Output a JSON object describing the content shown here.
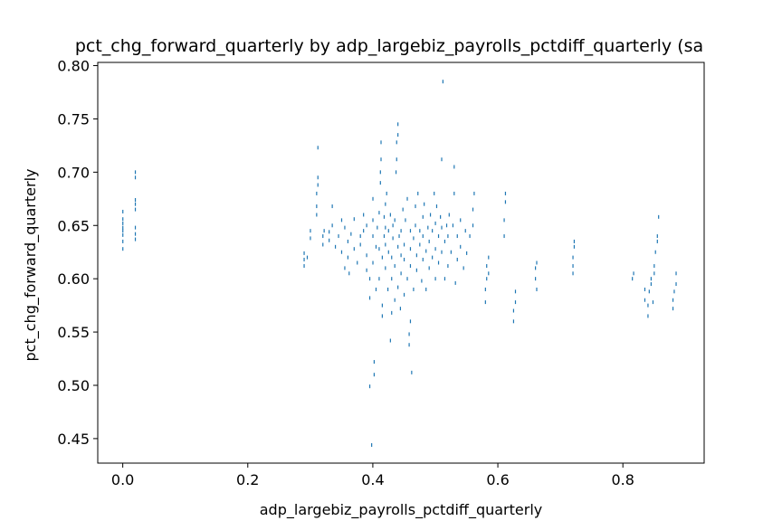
{
  "chart_data": {
    "type": "scatter",
    "title": "pct_chg_forward_quarterly by adp_largebiz_payrolls_pctdiff_quarterly (sa",
    "xlabel": "adp_largebiz_payrolls_pctdiff_quarterly",
    "ylabel": "pct_chg_forward_quarterly",
    "xlim": [
      -0.04,
      0.93
    ],
    "ylim": [
      0.427,
      0.803
    ],
    "xticks": [
      0.0,
      0.2,
      0.4,
      0.6,
      0.8
    ],
    "xtick_labels": [
      "0.0",
      "0.2",
      "0.4",
      "0.6",
      "0.8"
    ],
    "yticks": [
      0.45,
      0.5,
      0.55,
      0.6,
      0.65,
      0.7,
      0.75,
      0.8
    ],
    "ytick_labels": [
      "0.45",
      "0.50",
      "0.55",
      "0.60",
      "0.65",
      "0.70",
      "0.75",
      "0.80"
    ],
    "grid": false,
    "marker_color": "#1f77b4",
    "points": [
      [
        0.0,
        0.628
      ],
      [
        0.0,
        0.635
      ],
      [
        0.0,
        0.641
      ],
      [
        0.0,
        0.645
      ],
      [
        0.0,
        0.648
      ],
      [
        0.0,
        0.652
      ],
      [
        0.0,
        0.656
      ],
      [
        0.0,
        0.663
      ],
      [
        0.02,
        0.637
      ],
      [
        0.02,
        0.642
      ],
      [
        0.02,
        0.648
      ],
      [
        0.02,
        0.665
      ],
      [
        0.02,
        0.67
      ],
      [
        0.02,
        0.674
      ],
      [
        0.02,
        0.695
      ],
      [
        0.02,
        0.7
      ],
      [
        0.29,
        0.612
      ],
      [
        0.29,
        0.618
      ],
      [
        0.29,
        0.624
      ],
      [
        0.295,
        0.62
      ],
      [
        0.3,
        0.638
      ],
      [
        0.3,
        0.645
      ],
      [
        0.31,
        0.66
      ],
      [
        0.31,
        0.668
      ],
      [
        0.31,
        0.68
      ],
      [
        0.312,
        0.688
      ],
      [
        0.312,
        0.695
      ],
      [
        0.312,
        0.723
      ],
      [
        0.32,
        0.632
      ],
      [
        0.32,
        0.64
      ],
      [
        0.322,
        0.645
      ],
      [
        0.33,
        0.636
      ],
      [
        0.33,
        0.644
      ],
      [
        0.335,
        0.65
      ],
      [
        0.335,
        0.668
      ],
      [
        0.34,
        0.63
      ],
      [
        0.345,
        0.64
      ],
      [
        0.35,
        0.625
      ],
      [
        0.35,
        0.655
      ],
      [
        0.355,
        0.61
      ],
      [
        0.355,
        0.648
      ],
      [
        0.36,
        0.62
      ],
      [
        0.36,
        0.635
      ],
      [
        0.362,
        0.605
      ],
      [
        0.365,
        0.642
      ],
      [
        0.37,
        0.628
      ],
      [
        0.37,
        0.656
      ],
      [
        0.375,
        0.615
      ],
      [
        0.38,
        0.64
      ],
      [
        0.38,
        0.632
      ],
      [
        0.385,
        0.645
      ],
      [
        0.385,
        0.66
      ],
      [
        0.39,
        0.608
      ],
      [
        0.39,
        0.622
      ],
      [
        0.39,
        0.65
      ],
      [
        0.395,
        0.582
      ],
      [
        0.395,
        0.6
      ],
      [
        0.4,
        0.615
      ],
      [
        0.4,
        0.64
      ],
      [
        0.4,
        0.655
      ],
      [
        0.4,
        0.675
      ],
      [
        0.402,
        0.51
      ],
      [
        0.402,
        0.522
      ],
      [
        0.395,
        0.499
      ],
      [
        0.398,
        0.444
      ],
      [
        0.405,
        0.59
      ],
      [
        0.405,
        0.63
      ],
      [
        0.407,
        0.648
      ],
      [
        0.41,
        0.6
      ],
      [
        0.41,
        0.628
      ],
      [
        0.41,
        0.662
      ],
      [
        0.412,
        0.69
      ],
      [
        0.412,
        0.7
      ],
      [
        0.413,
        0.712
      ],
      [
        0.413,
        0.728
      ],
      [
        0.415,
        0.565
      ],
      [
        0.415,
        0.575
      ],
      [
        0.415,
        0.62
      ],
      [
        0.418,
        0.64
      ],
      [
        0.418,
        0.658
      ],
      [
        0.42,
        0.61
      ],
      [
        0.42,
        0.632
      ],
      [
        0.42,
        0.648
      ],
      [
        0.42,
        0.67
      ],
      [
        0.422,
        0.68
      ],
      [
        0.424,
        0.59
      ],
      [
        0.425,
        0.625
      ],
      [
        0.425,
        0.645
      ],
      [
        0.428,
        0.66
      ],
      [
        0.428,
        0.542
      ],
      [
        0.43,
        0.568
      ],
      [
        0.43,
        0.6
      ],
      [
        0.43,
        0.62
      ],
      [
        0.432,
        0.638
      ],
      [
        0.432,
        0.65
      ],
      [
        0.435,
        0.58
      ],
      [
        0.435,
        0.612
      ],
      [
        0.435,
        0.655
      ],
      [
        0.437,
        0.7
      ],
      [
        0.438,
        0.712
      ],
      [
        0.438,
        0.728
      ],
      [
        0.44,
        0.735
      ],
      [
        0.44,
        0.745
      ],
      [
        0.44,
        0.592
      ],
      [
        0.44,
        0.63
      ],
      [
        0.442,
        0.64
      ],
      [
        0.444,
        0.572
      ],
      [
        0.445,
        0.605
      ],
      [
        0.445,
        0.622
      ],
      [
        0.445,
        0.645
      ],
      [
        0.448,
        0.665
      ],
      [
        0.45,
        0.585
      ],
      [
        0.45,
        0.618
      ],
      [
        0.45,
        0.632
      ],
      [
        0.452,
        0.655
      ],
      [
        0.455,
        0.675
      ],
      [
        0.455,
        0.6
      ],
      [
        0.458,
        0.548
      ],
      [
        0.458,
        0.538
      ],
      [
        0.46,
        0.56
      ],
      [
        0.46,
        0.612
      ],
      [
        0.46,
        0.628
      ],
      [
        0.46,
        0.645
      ],
      [
        0.462,
        0.512
      ],
      [
        0.465,
        0.59
      ],
      [
        0.465,
        0.638
      ],
      [
        0.468,
        0.65
      ],
      [
        0.468,
        0.668
      ],
      [
        0.47,
        0.608
      ],
      [
        0.47,
        0.622
      ],
      [
        0.472,
        0.68
      ],
      [
        0.475,
        0.632
      ],
      [
        0.475,
        0.645
      ],
      [
        0.478,
        0.598
      ],
      [
        0.48,
        0.618
      ],
      [
        0.48,
        0.64
      ],
      [
        0.48,
        0.658
      ],
      [
        0.482,
        0.67
      ],
      [
        0.485,
        0.59
      ],
      [
        0.485,
        0.626
      ],
      [
        0.488,
        0.648
      ],
      [
        0.49,
        0.61
      ],
      [
        0.49,
        0.635
      ],
      [
        0.492,
        0.66
      ],
      [
        0.495,
        0.62
      ],
      [
        0.495,
        0.645
      ],
      [
        0.498,
        0.68
      ],
      [
        0.5,
        0.6
      ],
      [
        0.5,
        0.628
      ],
      [
        0.5,
        0.652
      ],
      [
        0.502,
        0.668
      ],
      [
        0.505,
        0.615
      ],
      [
        0.505,
        0.64
      ],
      [
        0.508,
        0.658
      ],
      [
        0.51,
        0.625
      ],
      [
        0.51,
        0.648
      ],
      [
        0.51,
        0.712
      ],
      [
        0.512,
        0.785
      ],
      [
        0.515,
        0.6
      ],
      [
        0.515,
        0.635
      ],
      [
        0.518,
        0.65
      ],
      [
        0.52,
        0.612
      ],
      [
        0.52,
        0.64
      ],
      [
        0.522,
        0.66
      ],
      [
        0.525,
        0.625
      ],
      [
        0.528,
        0.65
      ],
      [
        0.53,
        0.68
      ],
      [
        0.53,
        0.705
      ],
      [
        0.532,
        0.596
      ],
      [
        0.535,
        0.618
      ],
      [
        0.535,
        0.64
      ],
      [
        0.54,
        0.63
      ],
      [
        0.54,
        0.655
      ],
      [
        0.545,
        0.61
      ],
      [
        0.548,
        0.645
      ],
      [
        0.55,
        0.624
      ],
      [
        0.555,
        0.64
      ],
      [
        0.56,
        0.65
      ],
      [
        0.56,
        0.665
      ],
      [
        0.562,
        0.68
      ],
      [
        0.58,
        0.578
      ],
      [
        0.58,
        0.59
      ],
      [
        0.582,
        0.6
      ],
      [
        0.582,
        0.612
      ],
      [
        0.585,
        0.605
      ],
      [
        0.585,
        0.62
      ],
      [
        0.61,
        0.64
      ],
      [
        0.61,
        0.655
      ],
      [
        0.612,
        0.672
      ],
      [
        0.612,
        0.68
      ],
      [
        0.625,
        0.56
      ],
      [
        0.625,
        0.57
      ],
      [
        0.628,
        0.578
      ],
      [
        0.628,
        0.588
      ],
      [
        0.66,
        0.6
      ],
      [
        0.66,
        0.61
      ],
      [
        0.662,
        0.615
      ],
      [
        0.662,
        0.59
      ],
      [
        0.72,
        0.605
      ],
      [
        0.72,
        0.612
      ],
      [
        0.72,
        0.62
      ],
      [
        0.722,
        0.63
      ],
      [
        0.722,
        0.635
      ],
      [
        0.815,
        0.6
      ],
      [
        0.817,
        0.605
      ],
      [
        0.835,
        0.58
      ],
      [
        0.835,
        0.59
      ],
      [
        0.84,
        0.565
      ],
      [
        0.84,
        0.575
      ],
      [
        0.842,
        0.588
      ],
      [
        0.845,
        0.595
      ],
      [
        0.845,
        0.6
      ],
      [
        0.848,
        0.578
      ],
      [
        0.85,
        0.605
      ],
      [
        0.85,
        0.612
      ],
      [
        0.852,
        0.625
      ],
      [
        0.855,
        0.635
      ],
      [
        0.855,
        0.64
      ],
      [
        0.857,
        0.658
      ],
      [
        0.88,
        0.572
      ],
      [
        0.88,
        0.58
      ],
      [
        0.882,
        0.588
      ],
      [
        0.885,
        0.595
      ],
      [
        0.885,
        0.605
      ]
    ]
  }
}
